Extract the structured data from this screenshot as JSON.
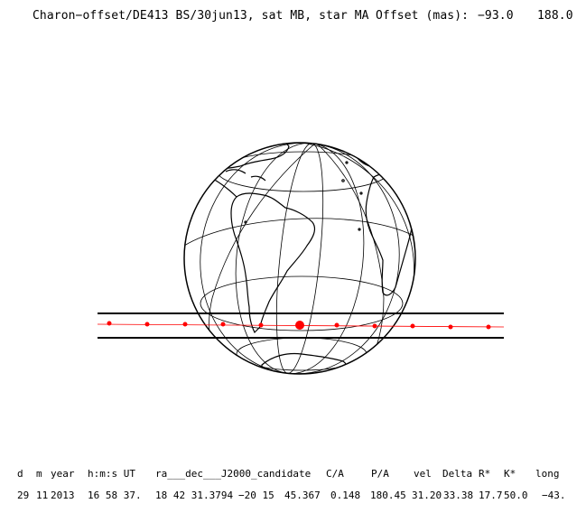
{
  "header": {
    "title": "Charon−offset/DE413 BS/30jun13, sat MB, star MA",
    "offset_label": "Offset (mas):",
    "offset_x": "−93.0",
    "offset_y": "188.0"
  },
  "table": {
    "headers": [
      "d",
      "m",
      "year",
      "h:m:s UT",
      "ra___dec___J2000_candidate",
      "C/A",
      "P/A",
      "vel",
      "Delta",
      "R*",
      "K*",
      "long"
    ],
    "values": [
      "29",
      "11",
      "2013",
      "16 58 37.",
      "18 42 31.3794",
      "−20 15",
      "45.367",
      "0.148",
      "180.45",
      "31.20",
      "33.38",
      "17.7",
      "50.0",
      "−43."
    ]
  },
  "colors": {
    "track_dots": "#ff0000",
    "night_shade": "#d3d3d3",
    "lines": "#000000"
  }
}
